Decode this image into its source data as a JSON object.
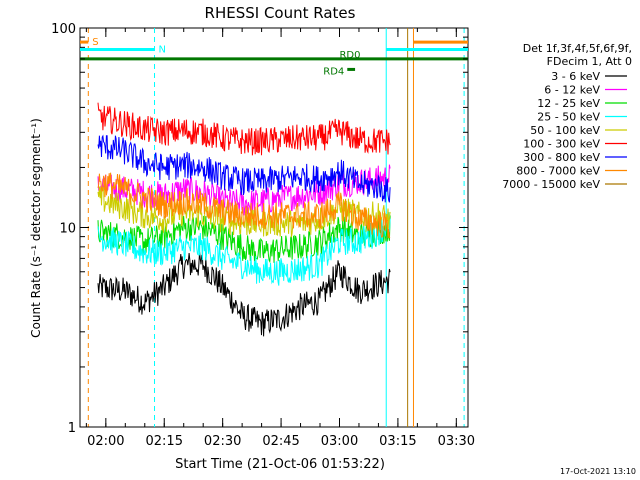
{
  "chart_data": {
    "type": "line",
    "title": "RHESSI Count Rates",
    "xlabel": "Start Time (21-Oct-06 01:53:22)",
    "ylabel": "Count Rate (s⁻¹ detector segment⁻¹)",
    "yscale": "log",
    "ylim": [
      1,
      100
    ],
    "xlim": [
      "01:53:22",
      "03:33:00"
    ],
    "x_ticks": [
      "02:00",
      "02:15",
      "02:30",
      "02:45",
      "03:00",
      "03:15",
      "03:30"
    ],
    "y_ticks": [
      "1",
      "10",
      "100"
    ],
    "legend": {
      "header": [
        "Det 1f,3f,4f,5f,6f,9f,",
        "FDecim 1, Att 0"
      ],
      "placement": "right",
      "entries": [
        {
          "label": "3 - 6 keV",
          "color": "#000000"
        },
        {
          "label": "6 - 12 keV",
          "color": "#ff00ff"
        },
        {
          "label": "12 - 25 keV",
          "color": "#00dd00"
        },
        {
          "label": "25 - 50 keV",
          "color": "#00ffff"
        },
        {
          "label": "50 - 100 keV",
          "color": "#cccc00"
        },
        {
          "label": "100 - 300 keV",
          "color": "#ff0000"
        },
        {
          "label": "300 - 800 keV",
          "color": "#0000ff"
        },
        {
          "label": "800 - 7000 keV",
          "color": "#ff8800"
        },
        {
          "label": "7000 - 15000 keV",
          "color": "#aa7700"
        }
      ]
    },
    "times": [
      "01:58",
      "02:05",
      "02:10",
      "02:15",
      "02:20",
      "02:25",
      "02:30",
      "02:35",
      "02:40",
      "02:45",
      "02:50",
      "02:55",
      "03:00",
      "03:05",
      "03:10",
      "03:13"
    ],
    "series": [
      {
        "name": "3 - 6 keV",
        "color": "#000000",
        "values": [
          5.0,
          4.8,
          4.2,
          5.0,
          6.5,
          6.5,
          5.0,
          3.6,
          3.3,
          3.5,
          4.0,
          4.3,
          6.0,
          4.8,
          5.2,
          5.5
        ]
      },
      {
        "name": "6 - 12 keV",
        "color": "#ff00ff",
        "values": [
          16.0,
          15.5,
          14.8,
          14.5,
          15.5,
          15.0,
          13.5,
          13.2,
          13.5,
          14.0,
          14.5,
          15.0,
          16.5,
          17.0,
          17.5,
          18.0
        ]
      },
      {
        "name": "12 - 25 keV",
        "color": "#00dd00",
        "values": [
          9.5,
          9.0,
          8.5,
          9.0,
          10.0,
          10.0,
          9.0,
          8.0,
          7.5,
          7.8,
          8.0,
          8.5,
          10.0,
          9.0,
          9.5,
          10.0
        ]
      },
      {
        "name": "25 - 50 keV",
        "color": "#00ffff",
        "values": [
          9.0,
          8.2,
          7.5,
          7.5,
          8.0,
          8.0,
          7.0,
          6.5,
          6.0,
          6.0,
          6.2,
          6.5,
          8.5,
          8.5,
          9.5,
          10.5
        ]
      },
      {
        "name": "50 - 100 keV",
        "color": "#cccc00",
        "values": [
          14.0,
          12.5,
          11.5,
          11.0,
          12.0,
          11.5,
          11.0,
          10.5,
          10.5,
          10.5,
          10.5,
          11.0,
          12.5,
          11.5,
          11.5,
          11.0
        ]
      },
      {
        "name": "100 - 300 keV",
        "color": "#ff0000",
        "values": [
          36.0,
          33.0,
          31.0,
          30.0,
          30.5,
          30.0,
          28.0,
          27.0,
          27.0,
          27.5,
          28.0,
          28.0,
          30.5,
          27.5,
          27.0,
          27.0
        ]
      },
      {
        "name": "300 - 800 keV",
        "color": "#0000ff",
        "values": [
          26.0,
          24.0,
          21.0,
          20.0,
          20.5,
          20.0,
          18.0,
          17.0,
          17.0,
          17.5,
          18.0,
          17.5,
          19.0,
          16.5,
          16.0,
          15.0
        ]
      },
      {
        "name": "800 - 7000 keV",
        "color": "#ff8800",
        "values": [
          17.0,
          15.5,
          14.0,
          13.0,
          13.5,
          13.0,
          12.0,
          11.5,
          11.5,
          11.5,
          11.5,
          11.5,
          13.0,
          11.0,
          10.5,
          10.0
        ]
      }
    ],
    "annotations": [
      {
        "label": "S",
        "color": "#ff8800",
        "x_start": "01:53:22",
        "x_end": "01:55:30",
        "y": 85
      },
      {
        "label": "N",
        "color": "#00ffff",
        "x_start": "01:53:22",
        "x_end": "02:12:30",
        "y": 78
      },
      {
        "label": "RD0",
        "color": "#007700",
        "x_start": "01:53:22",
        "x_end": "03:33:00",
        "y": 70
      },
      {
        "label": "RD4",
        "color": "#007700",
        "x_start": "03:02:00",
        "x_end": "03:04:00",
        "y": 62
      },
      {
        "label": "",
        "color": "#ff8800",
        "x_start": "03:19:00",
        "x_end": "03:33:00",
        "y": 85
      },
      {
        "label": "",
        "color": "#00ffff",
        "x_start": "03:12:00",
        "x_end": "03:33:00",
        "y": 78
      }
    ],
    "vertical_lines": [
      {
        "time": "01:55:30",
        "color": "#ff8800",
        "style": "dashed"
      },
      {
        "time": "02:12:30",
        "color": "#00ffff",
        "style": "dashed"
      },
      {
        "time": "03:12:00",
        "color": "#00ffff",
        "style": "solid"
      },
      {
        "time": "03:17:30",
        "color": "#aa7700",
        "style": "solid"
      },
      {
        "time": "03:19:00",
        "color": "#ff8800",
        "style": "solid"
      },
      {
        "time": "03:32:00",
        "color": "#00ffff",
        "style": "dashed"
      }
    ],
    "grid": false
  },
  "footer": {
    "timestamp": "17-Oct-2021 13:10"
  }
}
